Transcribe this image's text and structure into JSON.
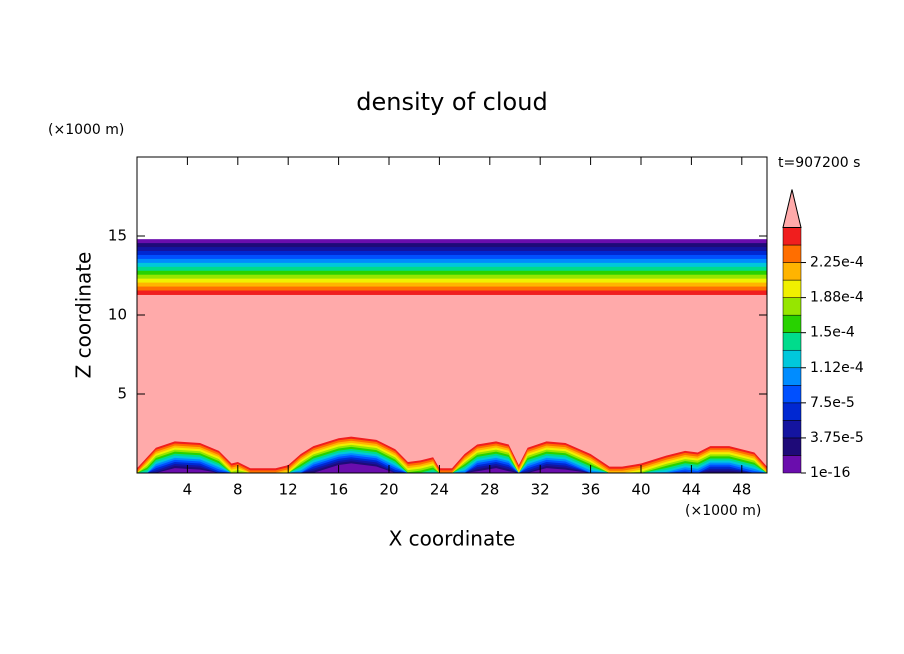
{
  "chart_data": {
    "type": "contour",
    "title": "density of cloud",
    "x_label": "X coordinate",
    "y_label": "Z coordinate",
    "x_unit": "(×1000 m)",
    "y_unit": "(×1000 m)",
    "time_label": "t=907200 s",
    "xlim": [
      0,
      50
    ],
    "xticks": [
      4,
      8,
      12,
      16,
      20,
      24,
      28,
      32,
      36,
      40,
      44,
      48
    ],
    "ylim": [
      0,
      20
    ],
    "yticks": [
      5,
      10,
      15
    ],
    "levels": [
      1e-16,
      1.875e-05,
      3.75e-05,
      5.625e-05,
      7.5e-05,
      9.375e-05,
      0.0001125,
      0.00013125,
      0.00015,
      0.00016875,
      0.0001875,
      0.00020625,
      0.000225,
      0.00024375
    ],
    "colors": [
      "#6a0dad",
      "#1e0a78",
      "#1414a0",
      "#0028d2",
      "#0050ff",
      "#008cff",
      "#00c8dc",
      "#00dc8c",
      "#28d200",
      "#96e600",
      "#f0f000",
      "#ffb400",
      "#ff6e00",
      "#f01e1e"
    ],
    "over_color": "#ffaaaa",
    "colorbar_ticks": [
      {
        "value": 1e-16,
        "label": "1e-16"
      },
      {
        "value": 3.75e-05,
        "label": "3.75e-5"
      },
      {
        "value": 7.5e-05,
        "label": "7.5e-5"
      },
      {
        "value": 0.0001125,
        "label": "1.12e-4"
      },
      {
        "value": 0.00015,
        "label": "1.5e-4"
      },
      {
        "value": 0.0001875,
        "label": "1.88e-4"
      },
      {
        "value": 0.000225,
        "label": "2.25e-4"
      }
    ],
    "upper_layer": {
      "bottom": 11.3,
      "top": 14.8
    },
    "surface_profile": {
      "x": [
        0,
        0.8,
        1.5,
        3,
        5,
        6.5,
        7.5,
        8,
        9,
        10,
        11,
        12,
        13,
        14,
        16,
        17,
        19,
        20.5,
        21.5,
        22.5,
        23.5,
        24,
        25,
        26,
        27,
        28.5,
        29.5,
        30.3,
        31,
        32.5,
        34,
        36,
        37.5,
        38.5,
        40,
        42,
        43.5,
        44.5,
        45.5,
        47,
        49,
        50
      ],
      "top": [
        0.3,
        1.0,
        1.6,
        2.0,
        1.9,
        1.4,
        0.6,
        0.7,
        0.3,
        0.3,
        0.3,
        0.5,
        1.2,
        1.7,
        2.2,
        2.3,
        2.1,
        1.5,
        0.7,
        0.8,
        1.0,
        0.3,
        0.3,
        1.2,
        1.8,
        2.0,
        1.8,
        0.5,
        1.6,
        2.0,
        1.9,
        1.2,
        0.4,
        0.4,
        0.6,
        1.1,
        1.4,
        1.3,
        1.7,
        1.7,
        1.3,
        0.4
      ]
    }
  }
}
